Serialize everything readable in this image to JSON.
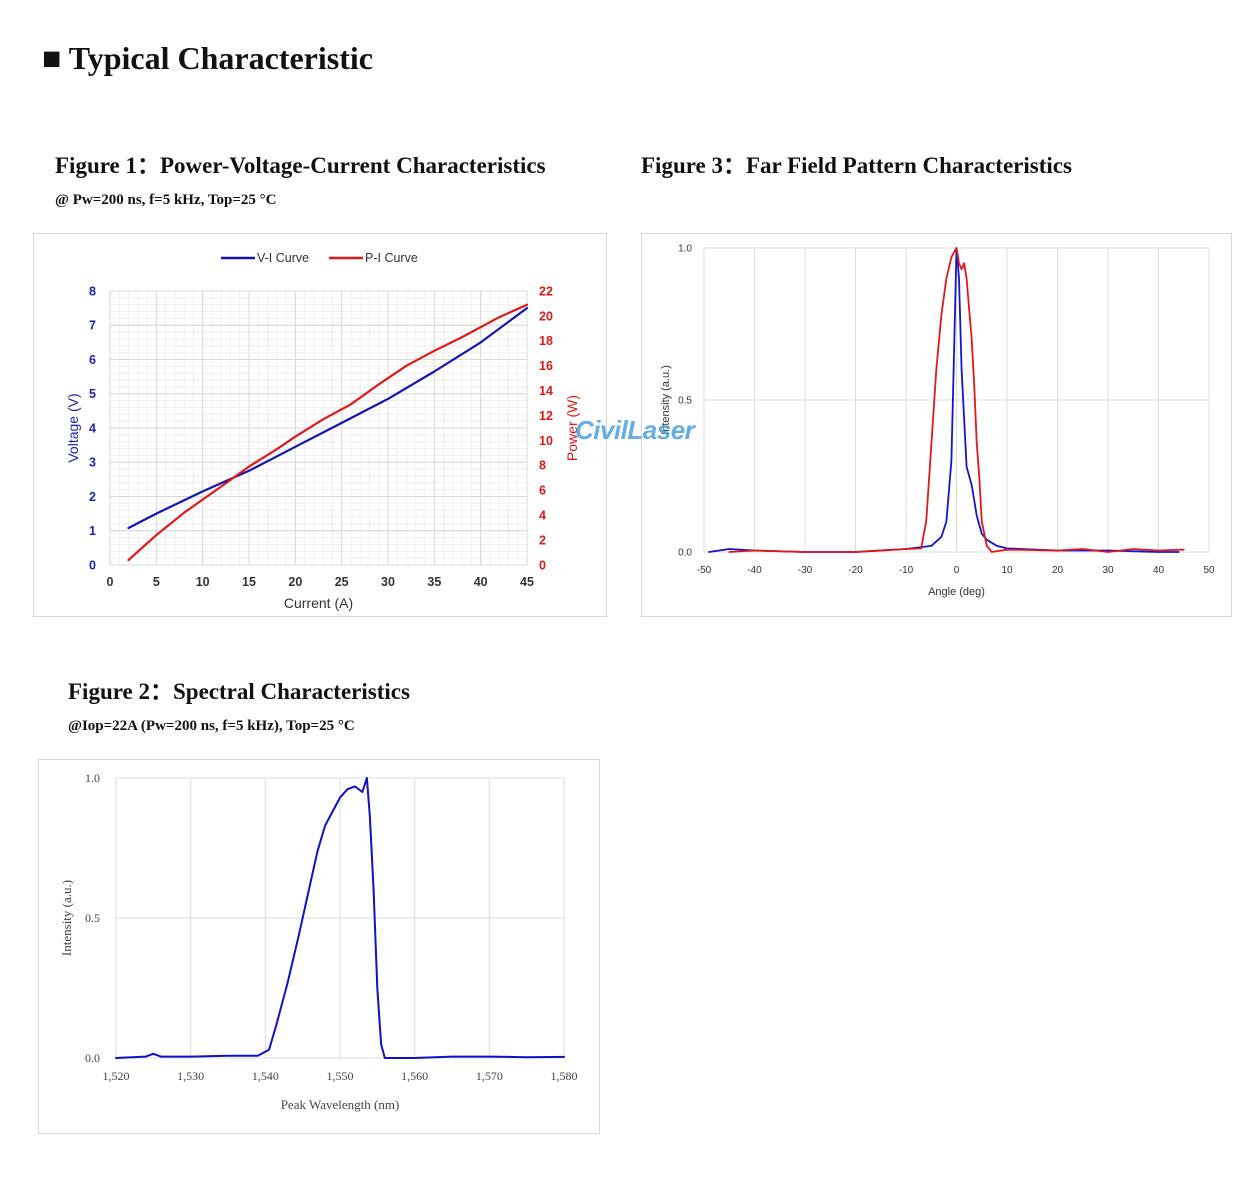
{
  "page": {
    "heading": "■ Typical Characteristic",
    "watermark": "CivilLaser"
  },
  "fig1": {
    "title": "Figure 1：Power-Voltage-Current Characteristics",
    "subtitle": "@ Pw=200 ns, f=5 kHz, Top=25 °C"
  },
  "fig2": {
    "title": "Figure 2：Spectral Characteristics",
    "subtitle": "@Iop=22A (Pw=200 ns, f=5 kHz), Top=25 °C"
  },
  "fig3": {
    "title": "Figure 3：Far Field Pattern Characteristics"
  },
  "chart_data": [
    {
      "id": "fig1",
      "type": "line",
      "xlabel": "Current (A)",
      "ylabel": "Voltage (V)",
      "y2label": "Power (W)",
      "xlim": [
        0,
        45
      ],
      "ylim": [
        0,
        8
      ],
      "y2lim": [
        0,
        22
      ],
      "xticks": [
        "0",
        "5",
        "10",
        "15",
        "20",
        "25",
        "30",
        "35",
        "40",
        "45"
      ],
      "yticks": [
        "0",
        "1",
        "2",
        "3",
        "4",
        "5",
        "6",
        "7",
        "8"
      ],
      "y2ticks": [
        "0",
        "2",
        "4",
        "6",
        "8",
        "10",
        "12",
        "14",
        "16",
        "18",
        "20",
        "22"
      ],
      "legend": "top",
      "grid": true,
      "colors": {
        "axis_left": "#1f1fb0",
        "axis_right": "#e01818"
      },
      "series": [
        {
          "name": "V-I Curve",
          "color": "#1414b4",
          "axis": "left",
          "x": [
            2,
            5,
            10,
            15,
            20,
            25,
            30,
            35,
            40,
            45
          ],
          "y": [
            1.08,
            1.5,
            2.15,
            2.75,
            3.45,
            4.15,
            4.85,
            5.65,
            6.5,
            7.5
          ]
        },
        {
          "name": "P-I Curve",
          "color": "#e01818",
          "axis": "right",
          "x": [
            2,
            5,
            8,
            12,
            15,
            18,
            20,
            23,
            26,
            29,
            32,
            35,
            38,
            42,
            45
          ],
          "y": [
            0.4,
            2.4,
            4.2,
            6.3,
            7.9,
            9.3,
            10.3,
            11.7,
            12.9,
            14.5,
            16.0,
            17.2,
            18.3,
            19.9,
            20.9
          ]
        }
      ]
    },
    {
      "id": "fig2",
      "type": "line",
      "xlabel": "Peak Wavelength (nm)",
      "ylabel": "Intensity (a.u.)",
      "xlim": [
        1520,
        1580
      ],
      "ylim": [
        0,
        1.0
      ],
      "xticks": [
        "1,520",
        "1,530",
        "1,540",
        "1,550",
        "1,560",
        "1,570",
        "1,580"
      ],
      "yticks": [
        "0.0",
        "0.5",
        "1.0"
      ],
      "grid": true,
      "series": [
        {
          "color": "#1010c8",
          "x": [
            1520,
            1524,
            1525,
            1526,
            1530,
            1535,
            1539,
            1540.5,
            1541.5,
            1543,
            1544.5,
            1546,
            1547,
            1548,
            1549,
            1550,
            1551,
            1552,
            1553,
            1553.6,
            1554,
            1554.5,
            1555,
            1555.5,
            1556,
            1560,
            1565,
            1570,
            1575,
            1580
          ],
          "y": [
            0.0,
            0.005,
            0.015,
            0.005,
            0.005,
            0.008,
            0.008,
            0.03,
            0.12,
            0.27,
            0.44,
            0.62,
            0.74,
            0.83,
            0.88,
            0.93,
            0.96,
            0.97,
            0.95,
            1.0,
            0.86,
            0.6,
            0.25,
            0.05,
            0.0,
            0.0,
            0.005,
            0.005,
            0.003,
            0.004
          ]
        }
      ]
    },
    {
      "id": "fig3",
      "type": "line",
      "xlabel": "Angle (deg)",
      "ylabel": "Intensity (a.u.)",
      "xlim": [
        -50,
        50
      ],
      "ylim": [
        0,
        1.0
      ],
      "xticks": [
        "-50",
        "-40",
        "-30",
        "-20",
        "-10",
        "0",
        "10",
        "20",
        "30",
        "40",
        "50"
      ],
      "yticks": [
        "0.0",
        "0.5",
        "1.0"
      ],
      "grid": true,
      "series": [
        {
          "color": "#1414d0",
          "x": [
            -49,
            -45,
            -40,
            -30,
            -20,
            -10,
            -5,
            -3,
            -2,
            -1,
            -0.5,
            0,
            0.5,
            1,
            2,
            3,
            4,
            5,
            6,
            8,
            10,
            20,
            30,
            40,
            44
          ],
          "y": [
            0.0,
            0.01,
            0.005,
            0.0,
            0.0,
            0.01,
            0.02,
            0.05,
            0.1,
            0.3,
            0.65,
            1.0,
            0.9,
            0.6,
            0.28,
            0.22,
            0.12,
            0.06,
            0.04,
            0.02,
            0.012,
            0.005,
            0.005,
            0.0,
            0.0
          ]
        },
        {
          "color": "#e01818",
          "x": [
            -45,
            -40,
            -30,
            -20,
            -10,
            -7,
            -6,
            -5,
            -4,
            -3,
            -2,
            -1,
            0,
            0.5,
            1,
            1.5,
            2,
            2.5,
            3,
            3.5,
            4,
            4.5,
            5,
            6,
            7,
            10,
            20,
            25,
            30,
            35,
            40,
            45
          ],
          "y": [
            0.0,
            0.005,
            0.0,
            0.0,
            0.01,
            0.012,
            0.1,
            0.35,
            0.6,
            0.78,
            0.9,
            0.97,
            1.0,
            0.95,
            0.93,
            0.95,
            0.9,
            0.8,
            0.7,
            0.55,
            0.36,
            0.25,
            0.1,
            0.02,
            0.0,
            0.008,
            0.005,
            0.01,
            0.0,
            0.01,
            0.005,
            0.008
          ]
        }
      ]
    }
  ]
}
